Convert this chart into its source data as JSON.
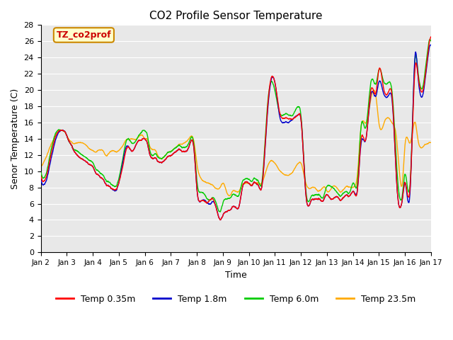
{
  "title": "CO2 Profile Sensor Temperature",
  "xlabel": "Time",
  "ylabel": "Senor Temperature (C)",
  "annotation_text": "TZ_co2prof",
  "annotation_bg": "#ffffcc",
  "annotation_border": "#cc8800",
  "annotation_text_color": "#cc0000",
  "ylim": [
    0,
    28
  ],
  "yticks": [
    0,
    2,
    4,
    6,
    8,
    10,
    12,
    14,
    16,
    18,
    20,
    22,
    24,
    26,
    28
  ],
  "xtick_labels": [
    "Jan 2",
    "Jan 3",
    "Jan 4",
    "Jan 5",
    "Jan 6",
    "Jan 7",
    "Jan 8",
    "Jan 9",
    "Jan 10",
    "Jan 11",
    "Jan 12",
    "Jan 13",
    "Jan 14",
    "Jan 15",
    "Jan 16",
    "Jan 17"
  ],
  "series_colors": [
    "#ff0000",
    "#0000cc",
    "#00cc00",
    "#ffaa00"
  ],
  "series_labels": [
    "Temp 0.35m",
    "Temp 1.8m",
    "Temp 6.0m",
    "Temp 23.5m"
  ],
  "series_linewidths": [
    1.0,
    1.0,
    1.0,
    1.0
  ],
  "bg_color": "#e8e8e8",
  "grid_color": "#ffffff",
  "figsize": [
    6.4,
    4.8
  ],
  "dpi": 100,
  "control_t_035": [
    0,
    0.3,
    0.5,
    0.8,
    1.0,
    1.2,
    1.4,
    1.6,
    1.8,
    2.0,
    2.2,
    2.4,
    2.5,
    2.7,
    3.0,
    3.2,
    3.4,
    3.5,
    3.7,
    3.9,
    4.0,
    4.1,
    4.2,
    4.4,
    4.6,
    4.8,
    5.0,
    5.2,
    5.5,
    5.7,
    5.9,
    6.0,
    6.2,
    6.4,
    6.5,
    6.7,
    6.9,
    7.0,
    7.2,
    7.4,
    7.5,
    7.6,
    7.8,
    8.0,
    8.2,
    8.4,
    8.5,
    8.7,
    9.0,
    9.2,
    9.4,
    9.5,
    9.7,
    9.9,
    10.0,
    10.2,
    10.4,
    10.5,
    10.7,
    10.9,
    11.0,
    11.2,
    11.4,
    11.5,
    11.7,
    11.9,
    12.0,
    12.2,
    12.3,
    12.5,
    12.7,
    12.9,
    13.0,
    13.2,
    13.4,
    13.5,
    13.7,
    13.9,
    14.0,
    14.2,
    14.4,
    14.5,
    14.7,
    14.9,
    15.0
  ],
  "control_v_035": [
    9.5,
    10.5,
    13.5,
    15.0,
    14.5,
    13.0,
    12.0,
    11.5,
    11.0,
    10.5,
    9.5,
    9.0,
    8.5,
    8.0,
    8.5,
    11.5,
    13.0,
    12.5,
    13.5,
    14.0,
    14.0,
    13.5,
    12.0,
    11.5,
    11.0,
    11.5,
    12.0,
    12.5,
    12.5,
    13.0,
    12.5,
    8.0,
    6.5,
    6.0,
    6.5,
    6.0,
    4.0,
    4.5,
    5.0,
    5.5,
    5.5,
    5.5,
    8.5,
    8.5,
    8.5,
    8.0,
    8.0,
    17.0,
    21.0,
    17.0,
    16.5,
    16.5,
    16.5,
    17.0,
    16.5,
    7.0,
    6.5,
    6.5,
    6.5,
    6.5,
    7.0,
    6.5,
    7.0,
    6.5,
    7.0,
    7.0,
    7.5,
    8.5,
    13.5,
    14.0,
    20.0,
    20.0,
    22.5,
    20.0,
    20.0,
    19.5,
    8.0,
    6.5,
    8.5,
    8.0,
    23.0,
    22.0,
    20.0,
    25.0,
    26.5
  ],
  "control_t_18": [
    0,
    0.3,
    0.5,
    0.8,
    1.0,
    1.2,
    1.4,
    1.6,
    1.8,
    2.0,
    2.2,
    2.4,
    2.5,
    2.7,
    3.0,
    3.2,
    3.4,
    3.5,
    3.7,
    3.9,
    4.0,
    4.1,
    4.2,
    4.4,
    4.6,
    4.8,
    5.0,
    5.2,
    5.5,
    5.7,
    5.9,
    6.0,
    6.2,
    6.4,
    6.5,
    6.7,
    6.9,
    7.0,
    7.2,
    7.4,
    7.5,
    7.6,
    7.8,
    8.0,
    8.2,
    8.4,
    8.5,
    8.7,
    9.0,
    9.2,
    9.4,
    9.5,
    9.7,
    9.9,
    10.0,
    10.2,
    10.4,
    10.5,
    10.7,
    10.9,
    11.0,
    11.2,
    11.4,
    11.5,
    11.7,
    11.9,
    12.0,
    12.2,
    12.3,
    12.5,
    12.7,
    12.9,
    13.0,
    13.2,
    13.4,
    13.5,
    13.7,
    13.9,
    14.0,
    14.2,
    14.4,
    14.5,
    14.7,
    14.9,
    15.0
  ],
  "control_v_18": [
    9.0,
    10.0,
    13.0,
    15.0,
    14.5,
    13.0,
    12.0,
    11.5,
    11.0,
    10.5,
    9.5,
    9.0,
    8.5,
    8.0,
    8.5,
    12.0,
    13.0,
    12.5,
    13.5,
    14.0,
    14.0,
    13.5,
    12.0,
    11.5,
    11.0,
    11.5,
    12.0,
    12.5,
    12.5,
    13.0,
    12.5,
    8.0,
    6.5,
    6.0,
    6.0,
    6.0,
    4.0,
    4.5,
    5.0,
    5.5,
    5.5,
    5.5,
    8.5,
    8.5,
    8.5,
    8.0,
    8.0,
    16.5,
    21.0,
    16.5,
    16.0,
    16.0,
    16.5,
    17.0,
    16.5,
    7.0,
    6.5,
    6.5,
    6.5,
    6.5,
    7.0,
    6.5,
    7.0,
    6.5,
    7.0,
    7.0,
    7.5,
    8.5,
    13.0,
    14.0,
    19.5,
    19.5,
    21.0,
    19.5,
    19.5,
    19.0,
    8.0,
    6.5,
    8.5,
    7.5,
    24.5,
    22.0,
    19.5,
    24.5,
    25.5
  ],
  "control_t_60": [
    0,
    0.3,
    0.5,
    0.8,
    1.0,
    1.2,
    1.4,
    1.6,
    1.8,
    2.0,
    2.2,
    2.4,
    2.5,
    2.7,
    3.0,
    3.2,
    3.4,
    3.5,
    3.7,
    3.9,
    4.0,
    4.1,
    4.2,
    4.4,
    4.6,
    4.8,
    5.0,
    5.2,
    5.5,
    5.7,
    5.9,
    6.0,
    6.2,
    6.4,
    6.5,
    6.7,
    6.9,
    7.0,
    7.2,
    7.4,
    7.5,
    7.6,
    7.8,
    8.0,
    8.2,
    8.4,
    8.5,
    8.7,
    9.0,
    9.2,
    9.4,
    9.5,
    9.7,
    9.9,
    10.0,
    10.2,
    10.4,
    10.5,
    10.7,
    10.9,
    11.0,
    11.2,
    11.4,
    11.5,
    11.7,
    11.9,
    12.0,
    12.2,
    12.3,
    12.5,
    12.7,
    12.9,
    13.0,
    13.2,
    13.4,
    13.5,
    13.7,
    13.9,
    14.0,
    14.2,
    14.4,
    14.5,
    14.7,
    14.9,
    15.0
  ],
  "control_v_60": [
    10.0,
    11.0,
    14.0,
    15.0,
    14.5,
    13.0,
    12.5,
    12.0,
    11.5,
    11.0,
    10.0,
    9.5,
    9.0,
    8.5,
    9.0,
    12.5,
    14.0,
    13.5,
    14.0,
    15.0,
    15.0,
    14.5,
    12.5,
    12.0,
    11.5,
    12.0,
    12.5,
    13.0,
    13.0,
    13.5,
    13.0,
    9.0,
    7.5,
    6.5,
    6.5,
    6.5,
    5.0,
    6.0,
    6.5,
    7.0,
    7.0,
    7.0,
    9.0,
    9.0,
    9.0,
    8.5,
    8.5,
    17.5,
    20.0,
    17.0,
    17.0,
    17.0,
    17.0,
    18.0,
    17.0,
    7.5,
    7.0,
    7.0,
    7.0,
    7.0,
    8.0,
    8.0,
    7.5,
    7.0,
    7.5,
    7.5,
    8.5,
    9.5,
    15.0,
    15.5,
    21.0,
    21.0,
    22.5,
    21.0,
    21.0,
    20.0,
    10.0,
    7.0,
    9.5,
    8.5,
    24.0,
    22.5,
    20.5,
    25.5,
    26.0
  ],
  "control_t_235": [
    0,
    0.3,
    0.5,
    0.8,
    1.0,
    1.2,
    1.4,
    1.6,
    1.8,
    2.0,
    2.2,
    2.4,
    2.5,
    2.7,
    3.0,
    3.2,
    3.4,
    3.5,
    3.7,
    3.9,
    4.0,
    4.1,
    4.2,
    4.4,
    4.6,
    4.8,
    5.0,
    5.2,
    5.5,
    5.7,
    5.9,
    6.0,
    6.2,
    6.4,
    6.5,
    6.7,
    6.9,
    7.0,
    7.2,
    7.4,
    7.5,
    7.6,
    7.8,
    8.0,
    8.2,
    8.4,
    8.5,
    8.7,
    9.0,
    9.2,
    9.4,
    9.5,
    9.7,
    9.9,
    10.0,
    10.2,
    10.4,
    10.5,
    10.7,
    10.9,
    11.0,
    11.2,
    11.4,
    11.5,
    11.7,
    11.9,
    12.0,
    12.2,
    12.3,
    12.5,
    12.7,
    12.9,
    13.0,
    13.2,
    13.4,
    13.5,
    13.7,
    13.9,
    14.0,
    14.2,
    14.4,
    14.5,
    14.7,
    14.9,
    15.0
  ],
  "control_v_235": [
    10.5,
    12.5,
    14.0,
    15.0,
    14.5,
    13.5,
    13.5,
    13.5,
    13.0,
    12.5,
    12.5,
    12.5,
    12.0,
    12.5,
    12.5,
    13.5,
    14.0,
    14.0,
    14.0,
    14.5,
    14.0,
    14.0,
    13.0,
    12.5,
    11.5,
    12.0,
    12.5,
    13.0,
    13.5,
    14.0,
    13.5,
    11.0,
    9.0,
    8.5,
    8.5,
    8.0,
    8.0,
    8.5,
    7.0,
    7.5,
    7.5,
    7.5,
    8.5,
    8.5,
    8.5,
    8.5,
    8.5,
    10.5,
    11.0,
    10.0,
    9.5,
    9.5,
    10.0,
    11.0,
    11.0,
    8.5,
    8.0,
    8.0,
    7.5,
    8.0,
    7.5,
    8.0,
    8.0,
    7.5,
    8.0,
    8.0,
    8.0,
    10.5,
    15.0,
    16.0,
    19.0,
    19.0,
    16.0,
    16.0,
    16.5,
    16.0,
    13.5,
    8.5,
    13.0,
    13.5,
    16.0,
    14.0,
    13.0,
    13.5,
    13.5
  ]
}
